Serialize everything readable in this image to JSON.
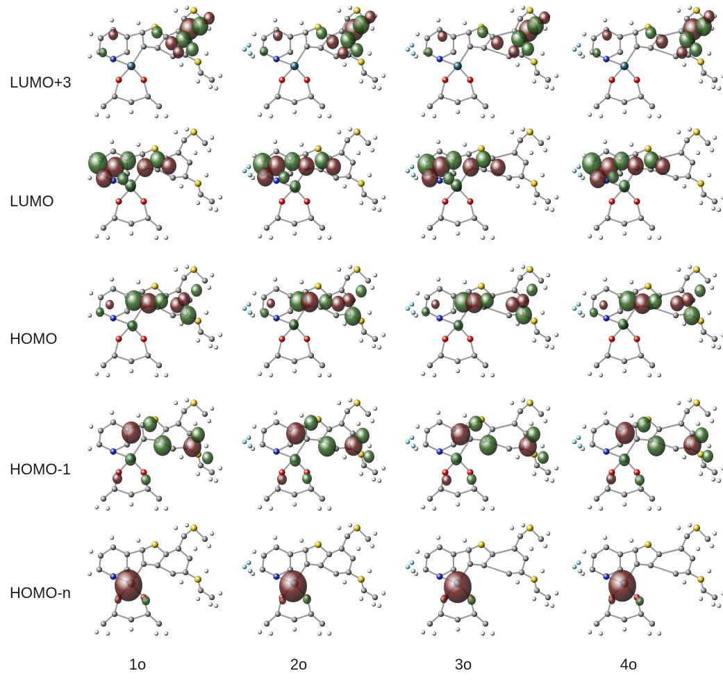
{
  "row_labels": [
    "LUMO+3",
    "LUMO",
    "HOMO",
    "HOMO-1",
    "HOMO-n"
  ],
  "column_labels": [
    "1o",
    "2o",
    "3o",
    "4o"
  ],
  "colors": {
    "lobe_positive": "#2f6b1f",
    "lobe_negative": "#6b1e1a",
    "carbon": "#8e8e8e",
    "hydrogen": "#dcdcdc",
    "nitrogen": "#1c2fd6",
    "oxygen": "#e01010",
    "sulfur": "#e0c21a",
    "metal": "#1f5f7a",
    "fluorine": "#8fd6e8",
    "bond": "#9a9a9a"
  }
}
